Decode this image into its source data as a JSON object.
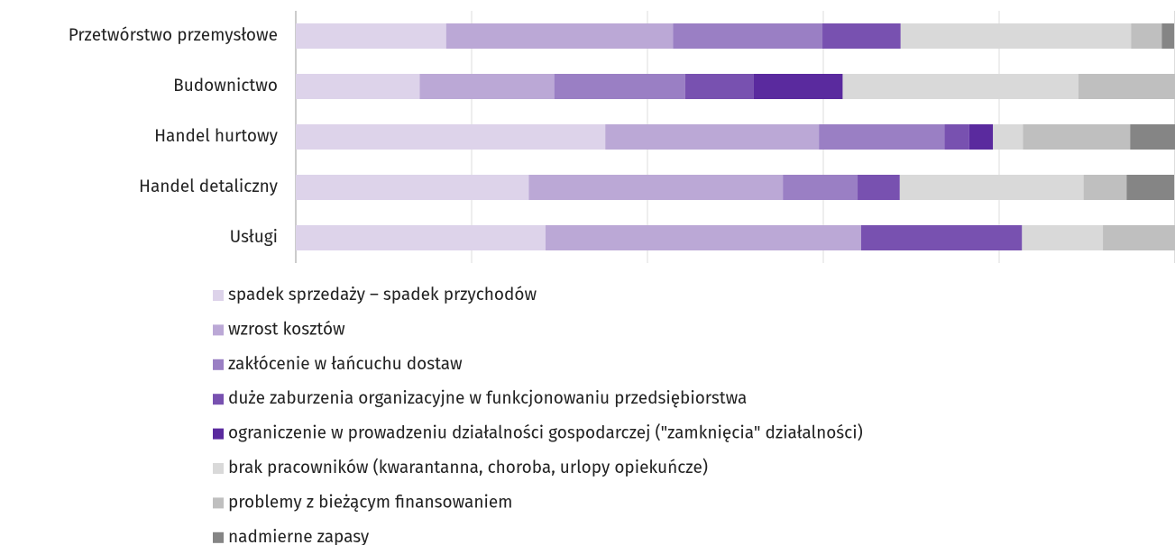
{
  "chart_data": {
    "type": "stacked-barh",
    "categories": [
      "Przetwórstwo przemysłowe",
      "Budownictwo",
      "Handel hurtowy",
      "Handel detaliczny",
      "Usługi"
    ],
    "series": [
      {
        "name": "spadek sprzedaży – spadek przychodów",
        "color": "#ddd3ea",
        "values": [
          17.1,
          14.1,
          35.2,
          26.5,
          28.4
        ]
      },
      {
        "name": "wzrost kosztów",
        "color": "#bba8d6",
        "values": [
          25.8,
          15.3,
          24.3,
          28.9,
          35.9
        ]
      },
      {
        "name": "zakłócenie w łańcuchu dostaw",
        "color": "#9a7fc4",
        "values": [
          17.0,
          14.9,
          14.3,
          8.5,
          0
        ]
      },
      {
        "name": "duże zaburzenia organizacyjne w funkcjonowaniu przedsiębiorstwa",
        "color": "#7851b0",
        "values": [
          8.9,
          7.8,
          2.8,
          4.8,
          18.3
        ]
      },
      {
        "name": "ograniczenie w prowadzeniu działalności gospodarczej (\"zamknięcia\" działalności)",
        "color": "#5a2a9e",
        "values": [
          0,
          10.1,
          2.7,
          0,
          0
        ]
      },
      {
        "name": "brak pracowników (kwarantanna, choroba, urlopy opiekuńcze)",
        "color": "#d9d9d9",
        "values": [
          26.2,
          26.8,
          3.4,
          20.9,
          9.2
        ]
      },
      {
        "name": "problemy z bieżącym finansowaniem",
        "color": "#bfbfbf",
        "values": [
          3.5,
          11.0,
          12.2,
          4.9,
          8.2
        ]
      },
      {
        "name": "nadmierne zapasy",
        "color": "#858585",
        "values": [
          1.4,
          0,
          5.2,
          5.4,
          0
        ]
      }
    ],
    "xlim": [
      0,
      100
    ],
    "xticks": [
      0,
      20,
      40,
      60,
      80,
      100
    ],
    "grid": true
  }
}
